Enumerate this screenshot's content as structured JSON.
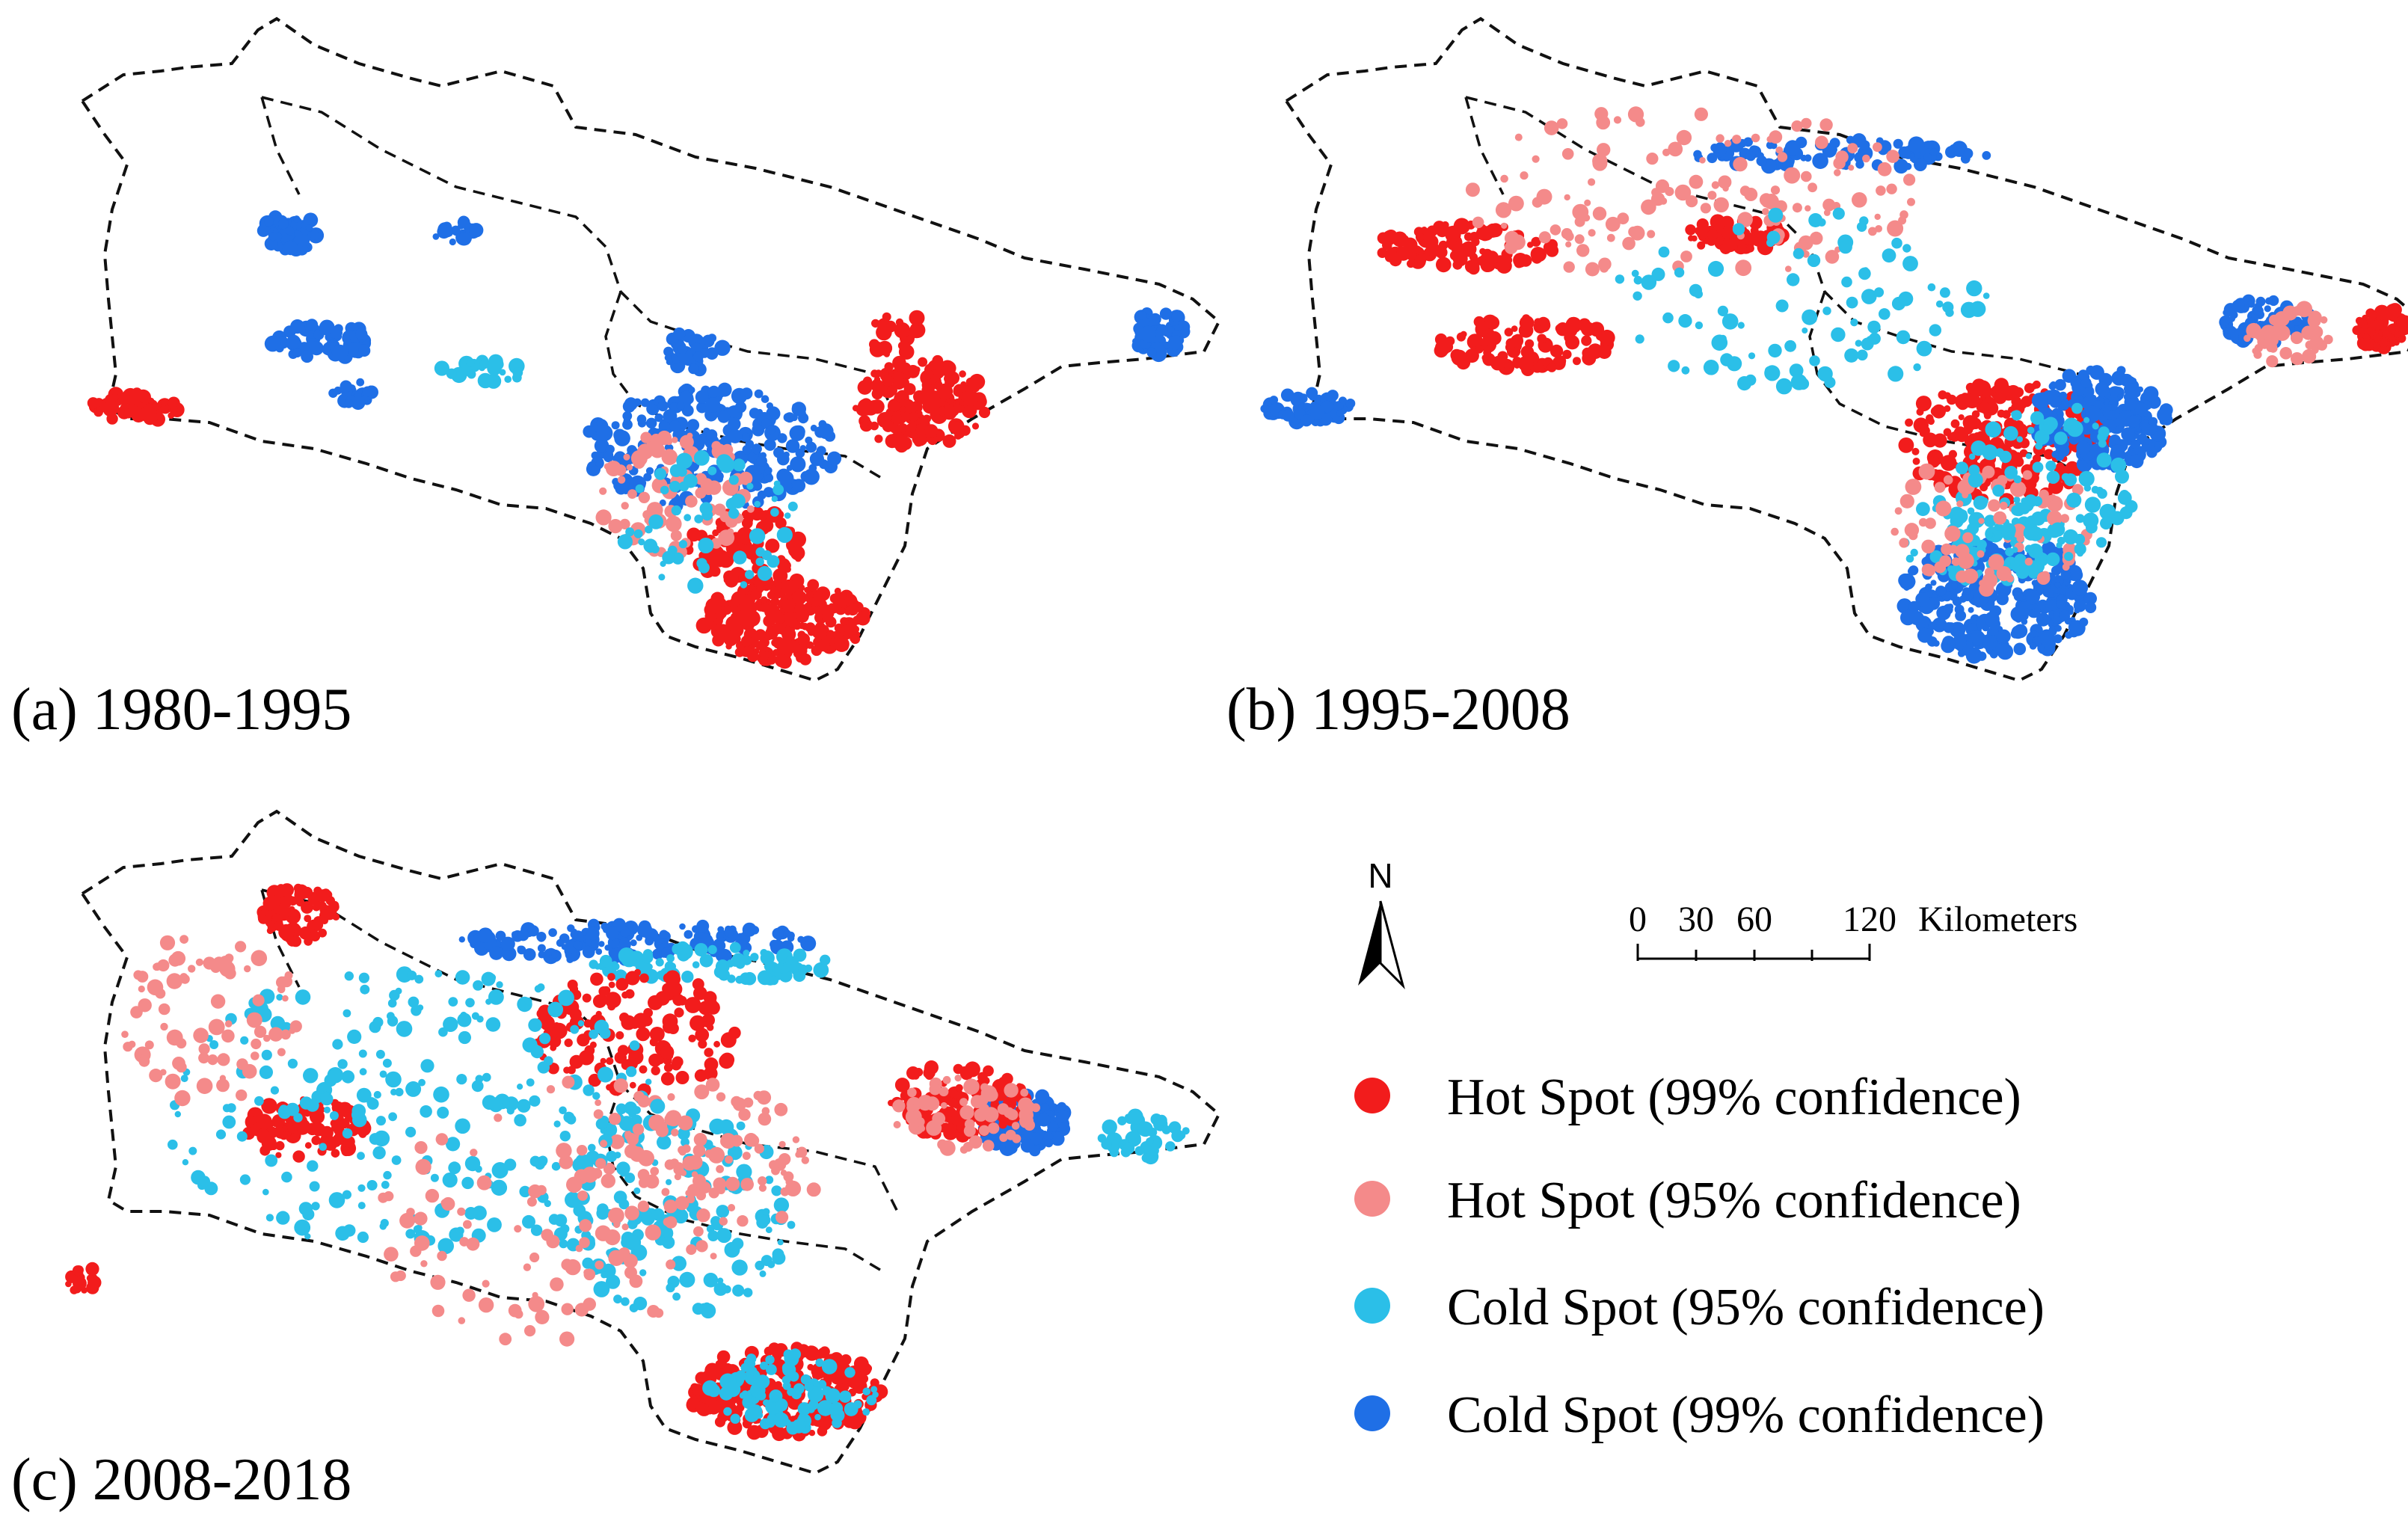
{
  "panels": [
    {
      "id": "a",
      "caption": "(a) 1980-1995"
    },
    {
      "id": "b",
      "caption": "(b) 1995-2008"
    },
    {
      "id": "c",
      "caption": "(c) 2008-2018"
    }
  ],
  "north_arrow": {
    "label": "N"
  },
  "scale_bar": {
    "ticks": [
      "0",
      "30",
      "60",
      "120"
    ],
    "unit": "Kilometers"
  },
  "legend": [
    {
      "label": "Hot Spot (99% confidence)",
      "color": "#f21c1c",
      "icon": "red-dot-icon"
    },
    {
      "label": "Hot Spot (95% confidence)",
      "color": "#f48a8a",
      "icon": "pink-dot-icon"
    },
    {
      "label": "Cold Spot (95% confidence)",
      "color": "#2bbfe8",
      "icon": "cyan-dot-icon"
    },
    {
      "label": "Cold Spot (99% confidence)",
      "color": "#1f6fe6",
      "icon": "blue-dot-icon"
    }
  ]
}
